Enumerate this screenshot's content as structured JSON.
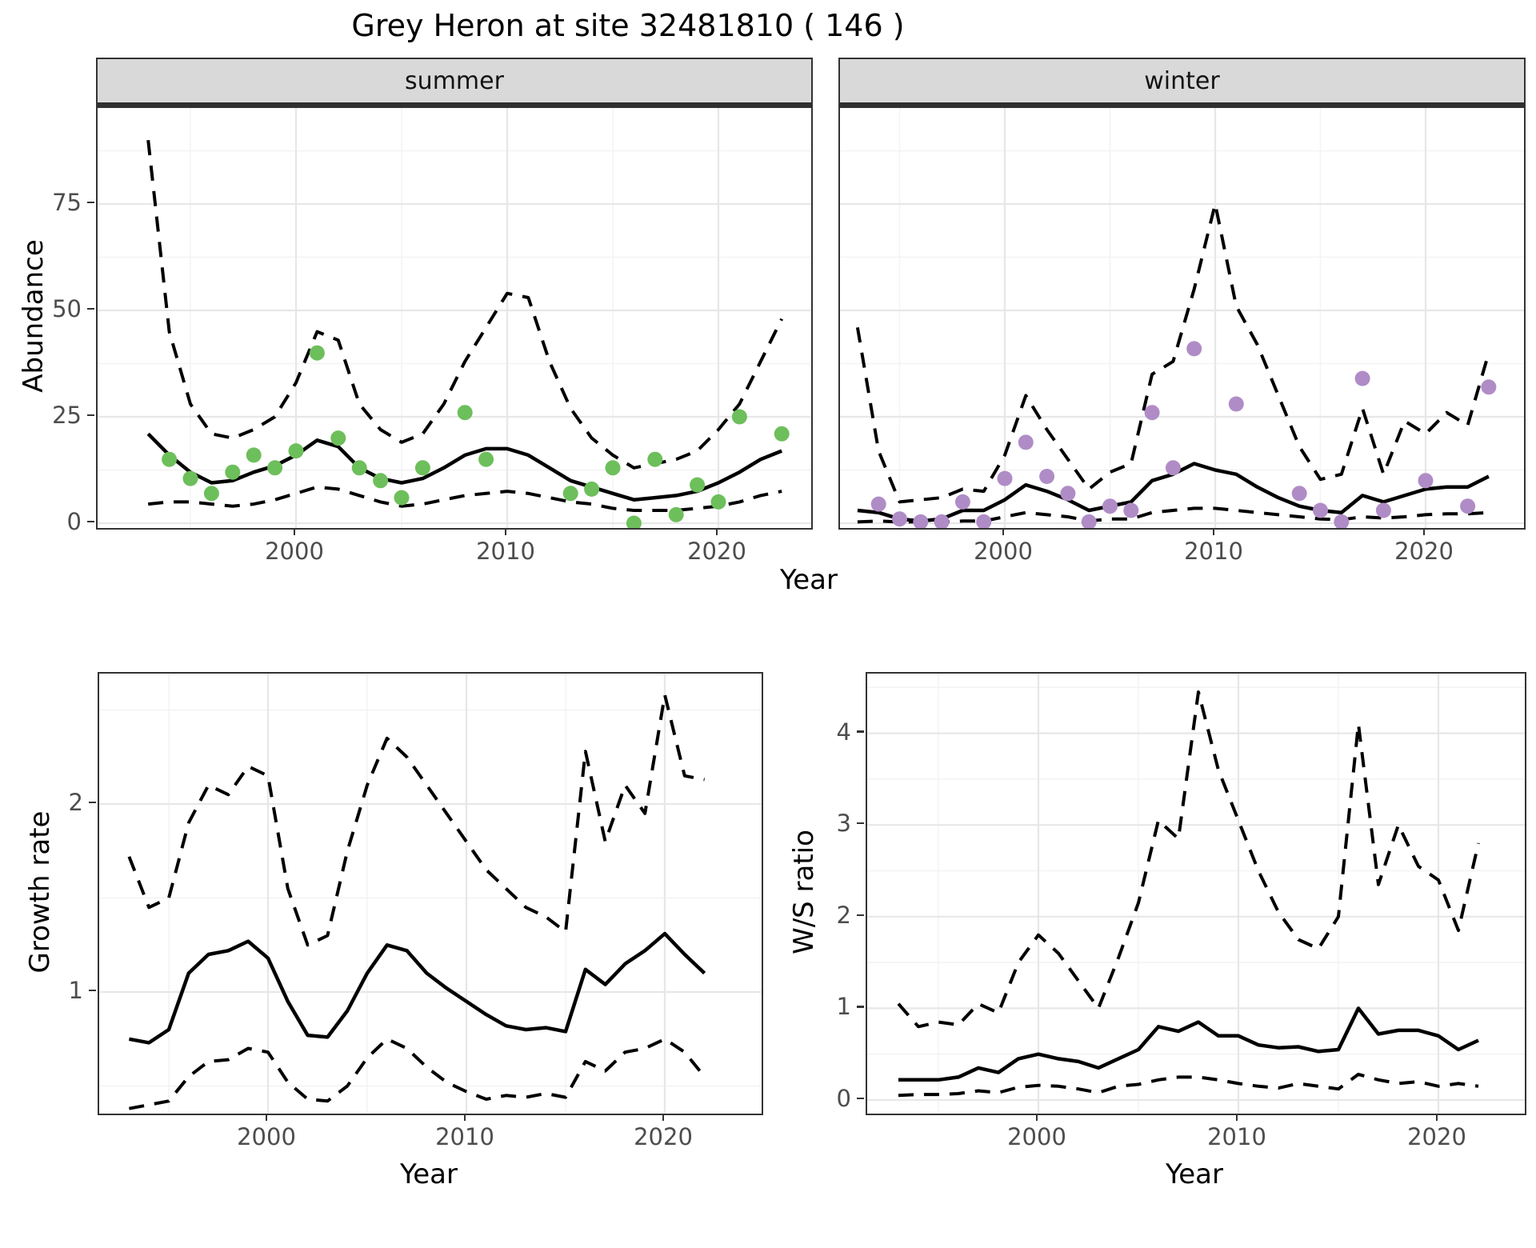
{
  "title": "Grey Heron at site 32481810 ( 146 )",
  "facets": {
    "summer_label": "summer",
    "winter_label": "winter"
  },
  "colors": {
    "summer_point": "#6dbf5b",
    "winter_point": "#b08cc7",
    "line": "#000000",
    "strip_bg": "#d9d9d9",
    "panel_border": "#333333",
    "grid_major": "#e7e7e7",
    "grid_minor": "#f3f3f3",
    "tick_text": "#4d4d4d"
  },
  "axes": {
    "abundance": {
      "ylabel": "Abundance",
      "xlabel": "Year",
      "yticks": [
        0,
        25,
        50,
        75
      ],
      "xticks": [
        2000,
        2010,
        2020
      ]
    },
    "growth": {
      "ylabel": "Growth rate",
      "xlabel": "Year",
      "yticks": [
        1,
        2
      ],
      "xticks": [
        2000,
        2010,
        2020
      ]
    },
    "ws": {
      "ylabel": "W/S ratio",
      "xlabel": "Year",
      "yticks": [
        0,
        1,
        2,
        3,
        4
      ],
      "xticks": [
        2000,
        2010,
        2020
      ]
    }
  },
  "chart_data": [
    {
      "id": "abundance_summer",
      "type": "line",
      "facet": "summer",
      "ylabel": "Abundance",
      "xlabel": "Year",
      "ylim": [
        -5,
        97
      ],
      "xlim": [
        1992,
        2024.5
      ],
      "years": [
        1993,
        1994,
        1995,
        1996,
        1997,
        1998,
        1999,
        2000,
        2001,
        2002,
        2003,
        2004,
        2005,
        2006,
        2007,
        2008,
        2009,
        2010,
        2011,
        2012,
        2013,
        2014,
        2015,
        2016,
        2017,
        2018,
        2019,
        2020,
        2021,
        2022,
        2023
      ],
      "series": [
        {
          "name": "model fit",
          "style": "solid",
          "values": [
            21,
            16,
            12,
            9.5,
            10,
            12,
            13.5,
            16,
            19.5,
            18,
            13,
            10.5,
            9.5,
            10.5,
            13,
            16,
            17.5,
            17.5,
            16,
            13,
            10,
            8.5,
            7,
            5.5,
            6,
            6.5,
            7.5,
            9.5,
            12,
            15,
            17
          ]
        },
        {
          "name": "upper CI",
          "style": "dashed",
          "values": [
            90,
            45,
            28,
            21,
            20,
            22,
            25,
            33,
            45,
            43,
            28,
            22,
            19,
            21,
            28,
            38,
            46,
            54,
            53,
            38,
            27,
            20,
            16,
            13,
            14,
            15,
            17,
            22,
            28,
            38,
            48
          ]
        },
        {
          "name": "lower CI",
          "style": "dashed",
          "values": [
            4.5,
            5,
            5,
            4.5,
            4,
            4.5,
            5.5,
            7,
            8.5,
            8,
            6.5,
            5,
            4,
            4.5,
            5.5,
            6.5,
            7,
            7.5,
            7,
            6,
            5,
            4.5,
            3.5,
            3,
            3,
            3,
            3.5,
            4,
            5,
            6.5,
            7.5
          ]
        }
      ],
      "points": {
        "name": "observed abundance (summer)",
        "color_key": "summer_point",
        "years": [
          1994,
          1995,
          1996,
          1997,
          1998,
          1999,
          2000,
          2001,
          2002,
          2003,
          2004,
          2005,
          2006,
          2008,
          2009,
          2013,
          2014,
          2015,
          2016,
          2017,
          2018,
          2019,
          2020,
          2021,
          2023
        ],
        "values": [
          15,
          10.5,
          7,
          12,
          16,
          13,
          17,
          40,
          20,
          13,
          10,
          6,
          13,
          26,
          15,
          7,
          8,
          13,
          0,
          15,
          2,
          9,
          5,
          25,
          21
        ]
      }
    },
    {
      "id": "abundance_winter",
      "type": "line",
      "facet": "winter",
      "ylabel": "Abundance",
      "xlabel": "Year",
      "ylim": [
        -5,
        97
      ],
      "xlim": [
        1992,
        2024.5
      ],
      "years": [
        1993,
        1994,
        1995,
        1996,
        1997,
        1998,
        1999,
        2000,
        2001,
        2002,
        2003,
        2004,
        2005,
        2006,
        2007,
        2008,
        2009,
        2010,
        2011,
        2012,
        2013,
        2014,
        2015,
        2016,
        2017,
        2018,
        2019,
        2020,
        2021,
        2022,
        2023
      ],
      "series": [
        {
          "name": "model fit",
          "style": "solid",
          "values": [
            3,
            2.5,
            1,
            0.5,
            1,
            3,
            3,
            5.5,
            9,
            7.5,
            5.5,
            3,
            4,
            5,
            10,
            11.5,
            14,
            12.5,
            11.5,
            8.5,
            6,
            4,
            3,
            2.5,
            6.5,
            5,
            6.5,
            8,
            8.5,
            8.5,
            11
          ]
        },
        {
          "name": "upper CI",
          "style": "dashed",
          "values": [
            46,
            17,
            5,
            5.5,
            6,
            8,
            7.5,
            16,
            30,
            22,
            15,
            8,
            12,
            14,
            35,
            38,
            55,
            75,
            51,
            42,
            30,
            18,
            10.3,
            11.5,
            27,
            11.5,
            24,
            21,
            26,
            23,
            40
          ]
        },
        {
          "name": "lower CI",
          "style": "dashed",
          "values": [
            0.3,
            0.5,
            0.3,
            0.3,
            0.3,
            0.5,
            0.5,
            1.5,
            2.5,
            2,
            1.5,
            0.5,
            1,
            1,
            2.5,
            3,
            3.5,
            3.5,
            3,
            2.5,
            2,
            1.5,
            1,
            0.8,
            1.5,
            1.2,
            1.5,
            2,
            2.2,
            2.2,
            2.5
          ]
        }
      ],
      "points": {
        "name": "observed abundance (winter)",
        "color_key": "winter_point",
        "years": [
          1994,
          1995,
          1996,
          1997,
          1998,
          1999,
          2000,
          2001,
          2002,
          2003,
          2004,
          2005,
          2006,
          2007,
          2008,
          2009,
          2011,
          2014,
          2015,
          2016,
          2017,
          2018,
          2020,
          2022,
          2023
        ],
        "values": [
          4.5,
          1,
          0.3,
          0.3,
          5,
          0.3,
          10.5,
          19,
          11,
          7,
          0.3,
          4,
          3,
          26,
          13,
          41,
          28,
          7,
          3,
          0.3,
          34,
          3,
          10,
          4,
          32
        ]
      }
    },
    {
      "id": "growth_rate",
      "type": "line",
      "ylabel": "Growth rate",
      "xlabel": "Year",
      "ylim": [
        0.35,
        2.7
      ],
      "xlim": [
        1992,
        2024.5
      ],
      "years": [
        1993,
        1994,
        1995,
        1996,
        1997,
        1998,
        1999,
        2000,
        2001,
        2002,
        2003,
        2004,
        2005,
        2006,
        2007,
        2008,
        2009,
        2010,
        2011,
        2012,
        2013,
        2014,
        2015,
        2016,
        2017,
        2018,
        2019,
        2020,
        2021,
        2022
      ],
      "series": [
        {
          "name": "growth rate",
          "style": "solid",
          "values": [
            0.75,
            0.73,
            0.8,
            1.1,
            1.2,
            1.22,
            1.27,
            1.18,
            0.95,
            0.77,
            0.76,
            0.9,
            1.1,
            1.25,
            1.22,
            1.1,
            1.02,
            0.95,
            0.88,
            0.82,
            0.8,
            0.81,
            0.79,
            1.12,
            1.04,
            1.15,
            1.22,
            1.31,
            1.2,
            1.1
          ]
        },
        {
          "name": "upper CI",
          "style": "dashed",
          "values": [
            1.72,
            1.45,
            1.5,
            1.9,
            2.1,
            2.05,
            2.2,
            2.15,
            1.55,
            1.25,
            1.3,
            1.75,
            2.1,
            2.35,
            2.25,
            2.1,
            1.95,
            1.8,
            1.65,
            1.55,
            1.45,
            1.4,
            1.32,
            2.28,
            1.8,
            2.1,
            1.95,
            2.58,
            2.15,
            2.13
          ]
        },
        {
          "name": "lower CI",
          "style": "dashed",
          "values": [
            0.38,
            0.4,
            0.42,
            0.55,
            0.63,
            0.64,
            0.7,
            0.68,
            0.52,
            0.43,
            0.42,
            0.5,
            0.65,
            0.75,
            0.7,
            0.6,
            0.52,
            0.47,
            0.43,
            0.45,
            0.44,
            0.46,
            0.44,
            0.63,
            0.58,
            0.68,
            0.7,
            0.75,
            0.68,
            0.55
          ]
        }
      ]
    },
    {
      "id": "ws_ratio",
      "type": "line",
      "ylabel": "W/S ratio",
      "xlabel": "Year",
      "ylim": [
        -0.15,
        4.65
      ],
      "xlim": [
        1992,
        2024.5
      ],
      "years": [
        1993,
        1994,
        1995,
        1996,
        1997,
        1998,
        1999,
        2000,
        2001,
        2002,
        2003,
        2004,
        2005,
        2006,
        2007,
        2008,
        2009,
        2010,
        2011,
        2012,
        2013,
        2014,
        2015,
        2016,
        2017,
        2018,
        2019,
        2020,
        2021,
        2022
      ],
      "series": [
        {
          "name": "W/S ratio",
          "style": "solid",
          "values": [
            0.22,
            0.22,
            0.22,
            0.25,
            0.35,
            0.3,
            0.45,
            0.5,
            0.45,
            0.42,
            0.35,
            0.45,
            0.55,
            0.8,
            0.75,
            0.85,
            0.7,
            0.7,
            0.6,
            0.57,
            0.58,
            0.53,
            0.55,
            1.0,
            0.72,
            0.76,
            0.76,
            0.7,
            0.55,
            0.65
          ]
        },
        {
          "name": "upper CI",
          "style": "dashed",
          "values": [
            1.05,
            0.8,
            0.85,
            0.82,
            1.05,
            0.95,
            1.5,
            1.8,
            1.6,
            1.3,
            1.0,
            1.55,
            2.15,
            3.05,
            2.85,
            4.45,
            3.6,
            3.05,
            2.5,
            2.05,
            1.75,
            1.65,
            2.0,
            4.1,
            2.35,
            3.0,
            2.55,
            2.4,
            1.85,
            2.8
          ]
        },
        {
          "name": "lower CI",
          "style": "dashed",
          "values": [
            0.05,
            0.06,
            0.06,
            0.07,
            0.1,
            0.08,
            0.14,
            0.16,
            0.15,
            0.12,
            0.08,
            0.15,
            0.17,
            0.22,
            0.25,
            0.25,
            0.22,
            0.18,
            0.15,
            0.13,
            0.18,
            0.15,
            0.12,
            0.28,
            0.22,
            0.18,
            0.2,
            0.15,
            0.18,
            0.15
          ]
        }
      ]
    }
  ]
}
